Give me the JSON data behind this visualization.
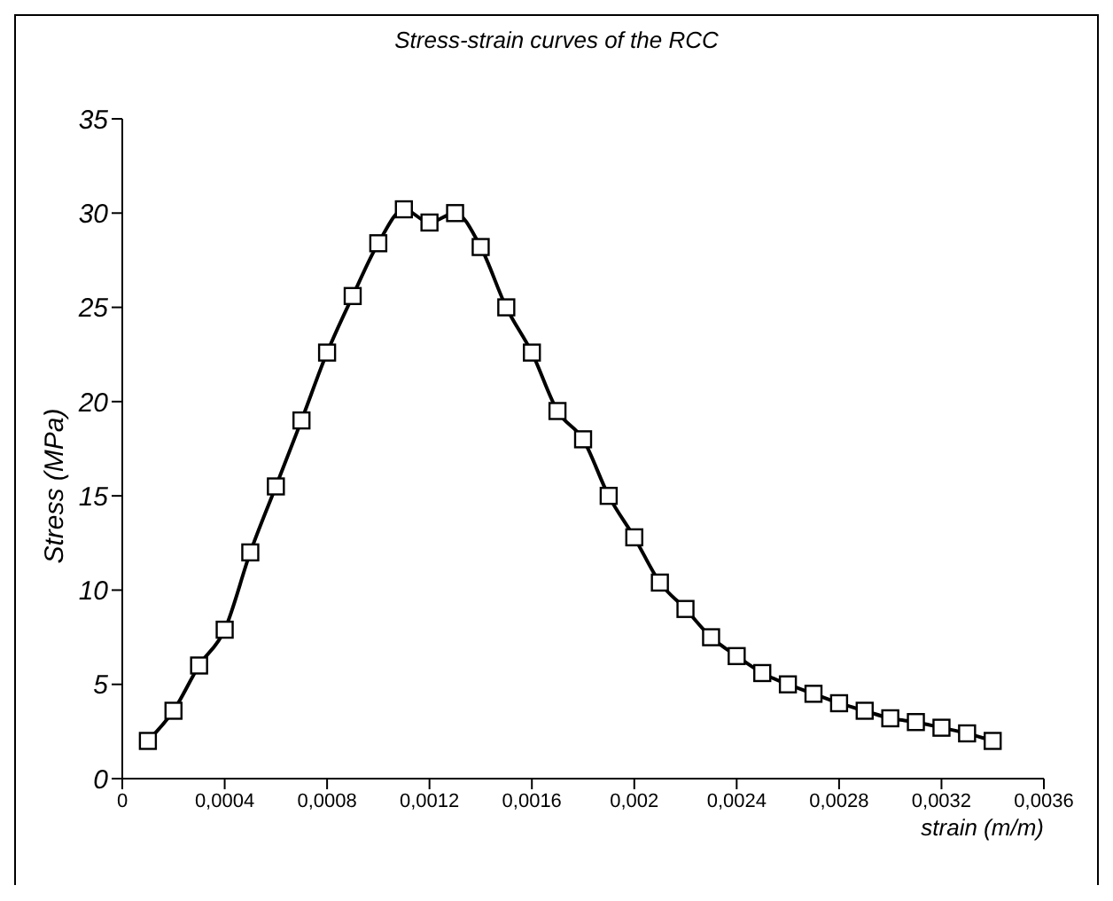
{
  "chart_data": {
    "type": "line",
    "title": "Stress-strain curves of the RCC",
    "xlabel": "strain (m/m)",
    "ylabel": "Stress (MPa)",
    "x": [
      0.0001,
      0.0002,
      0.0003,
      0.0004,
      0.0005,
      0.0006,
      0.0007,
      0.0008,
      0.0009,
      0.001,
      0.0011,
      0.0012,
      0.0013,
      0.0014,
      0.0015,
      0.0016,
      0.0017,
      0.0018,
      0.0019,
      0.002,
      0.0021,
      0.0022,
      0.0023,
      0.0024,
      0.0025,
      0.0026,
      0.0027,
      0.0028,
      0.0029,
      0.003,
      0.0031,
      0.0032,
      0.0033,
      0.0034
    ],
    "series": [
      {
        "color": "#000000",
        "values": [
          2,
          3.6,
          6,
          7.9,
          12,
          15.5,
          19,
          22.6,
          25.6,
          28.4,
          30.2,
          29.5,
          30,
          28.2,
          25,
          22.6,
          19.5,
          18,
          15,
          12.8,
          10.4,
          9,
          7.5,
          6.5,
          5.6,
          5,
          4.5,
          4,
          3.6,
          3.2,
          3,
          2.7,
          2.4,
          2
        ]
      }
    ],
    "xlim": [
      0,
      0.0036
    ],
    "xticks": [
      0,
      {
        "value": 0.0004,
        "label": "0,0004"
      },
      {
        "value": 0.0008,
        "label": "0,0008"
      },
      {
        "value": 0.0012,
        "label": "0,0012"
      },
      {
        "value": 0.0016,
        "label": "0,0016"
      },
      {
        "value": 0.002,
        "label": "0,002"
      },
      {
        "value": 0.0024,
        "label": "0,0024"
      },
      {
        "value": 0.0028,
        "label": "0,0028"
      },
      {
        "value": 0.0032,
        "label": "0,0032"
      },
      {
        "value": 0.0036,
        "label": "0,0036"
      }
    ],
    "ylim": [
      0,
      35
    ],
    "yticks": [
      0,
      5,
      10,
      15,
      20,
      25,
      30,
      35
    ],
    "grid": false,
    "marker": "square",
    "line_style": "solid"
  }
}
